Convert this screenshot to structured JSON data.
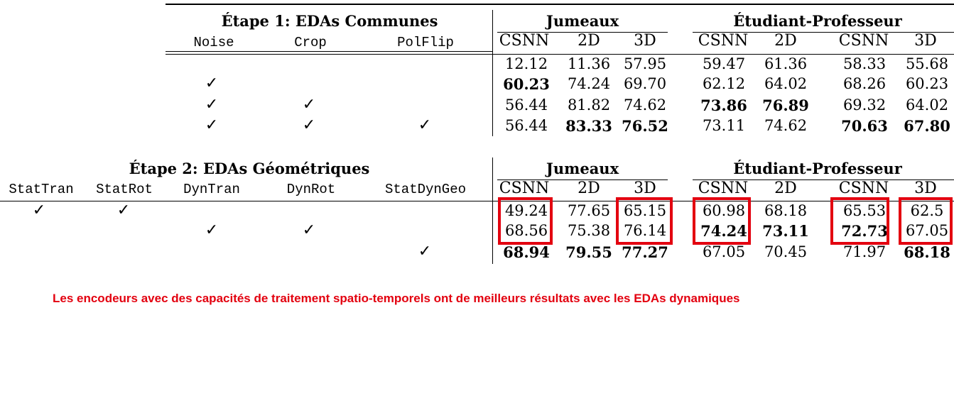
{
  "stage1": {
    "title": "Étape 1: EDAs Communes",
    "columns": [
      "Noise",
      "Crop",
      "PolFlip"
    ],
    "group_twins": "Jumeaux",
    "group_student": "Étudiant-Professeur",
    "sub_twins": [
      "CSNN",
      "2D",
      "3D"
    ],
    "sub_student_a": [
      "CSNN",
      "2D"
    ],
    "sub_student_b": [
      "CSNN",
      "3D"
    ],
    "rows": [
      {
        "checks": [
          false,
          false,
          false
        ],
        "values": [
          "12.12",
          "11.36",
          "57.95",
          "59.47",
          "61.36",
          "58.33",
          "55.68"
        ],
        "bold": [
          false,
          false,
          false,
          false,
          false,
          false,
          false
        ]
      },
      {
        "checks": [
          true,
          false,
          false
        ],
        "values": [
          "60.23",
          "74.24",
          "69.70",
          "62.12",
          "64.02",
          "68.26",
          "60.23"
        ],
        "bold": [
          true,
          false,
          false,
          false,
          false,
          false,
          false
        ]
      },
      {
        "checks": [
          true,
          true,
          false
        ],
        "values": [
          "56.44",
          "81.82",
          "74.62",
          "73.86",
          "76.89",
          "69.32",
          "64.02"
        ],
        "bold": [
          false,
          false,
          false,
          true,
          true,
          false,
          false
        ]
      },
      {
        "checks": [
          true,
          true,
          true
        ],
        "values": [
          "56.44",
          "83.33",
          "76.52",
          "73.11",
          "74.62",
          "70.63",
          "67.80"
        ],
        "bold": [
          false,
          true,
          true,
          false,
          false,
          true,
          true
        ]
      }
    ]
  },
  "stage2": {
    "title": "Étape 2: EDAs Géométriques",
    "columns": [
      "StatTran",
      "StatRot",
      "DynTran",
      "DynRot",
      "StatDynGeo"
    ],
    "group_twins": "Jumeaux",
    "group_student": "Étudiant-Professeur",
    "sub_twins": [
      "CSNN",
      "2D",
      "3D"
    ],
    "sub_student_a": [
      "CSNN",
      "2D"
    ],
    "sub_student_b": [
      "CSNN",
      "3D"
    ],
    "rows": [
      {
        "checks": [
          true,
          true,
          false,
          false,
          false
        ],
        "values": [
          "49.24",
          "77.65",
          "65.15",
          "60.98",
          "68.18",
          "65.53",
          "62.5"
        ],
        "bold": [
          false,
          false,
          false,
          false,
          false,
          false,
          false
        ]
      },
      {
        "checks": [
          false,
          false,
          true,
          true,
          false
        ],
        "values": [
          "68.56",
          "75.38",
          "76.14",
          "74.24",
          "73.11",
          "72.73",
          "67.05"
        ],
        "bold": [
          false,
          false,
          false,
          true,
          true,
          true,
          false
        ]
      },
      {
        "checks": [
          false,
          false,
          false,
          false,
          true
        ],
        "values": [
          "68.94",
          "79.55",
          "77.27",
          "67.05",
          "70.45",
          "71.97",
          "68.18"
        ],
        "bold": [
          true,
          true,
          true,
          false,
          false,
          false,
          true
        ]
      }
    ]
  },
  "check_symbol": "✓",
  "note": "Les encodeurs avec des capacités de traitement spatio-temporels ont de meilleurs résultats avec les EDAs dynamiques",
  "colors": {
    "highlight": "#e3000f",
    "text": "#000000"
  }
}
